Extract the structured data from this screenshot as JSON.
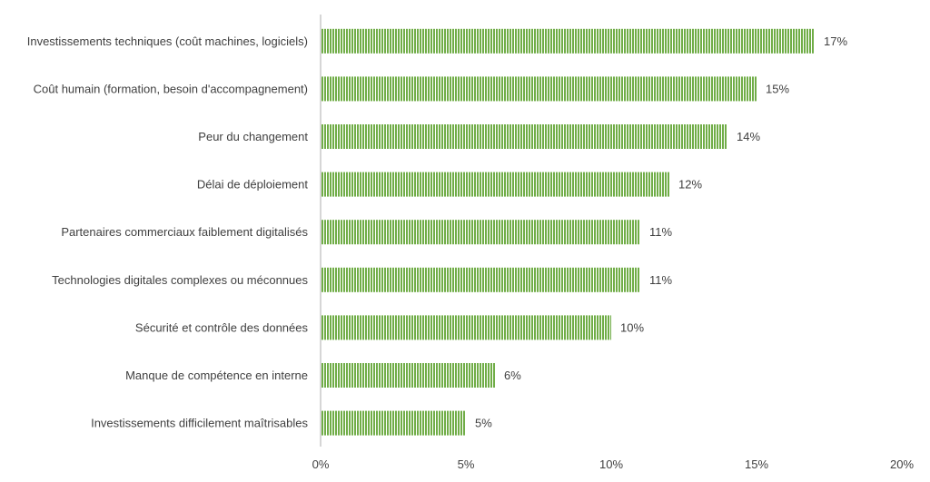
{
  "chart_data": {
    "type": "bar",
    "orientation": "horizontal",
    "title": "",
    "xlabel": "",
    "ylabel": "",
    "categories": [
      "Investissements techniques (coût machines, logiciels)",
      "Coût humain (formation, besoin d'accompagnement)",
      "Peur du changement",
      "Délai de déploiement",
      "Partenaires commerciaux faiblement digitalisés",
      "Technologies digitales complexes ou méconnues",
      "Sécurité et contrôle des données",
      "Manque de compétence en interne",
      "Investissements difficilement maîtrisables"
    ],
    "values": [
      17,
      15,
      14,
      12,
      11,
      11,
      10,
      6,
      5
    ],
    "data_labels": [
      "17%",
      "15%",
      "14%",
      "12%",
      "11%",
      "11%",
      "10%",
      "6%",
      "5%"
    ],
    "xlim": [
      0,
      20
    ],
    "ticks": [
      0,
      5,
      10,
      15,
      20
    ],
    "tick_labels": [
      "0%",
      "5%",
      "10%",
      "15%",
      "20%"
    ],
    "grid": false,
    "legend": "none",
    "bar_color": "#70ad47",
    "bar_pattern": "vertical-stripes",
    "text_color": "#404040",
    "axis_color": "#bfbfbf"
  }
}
